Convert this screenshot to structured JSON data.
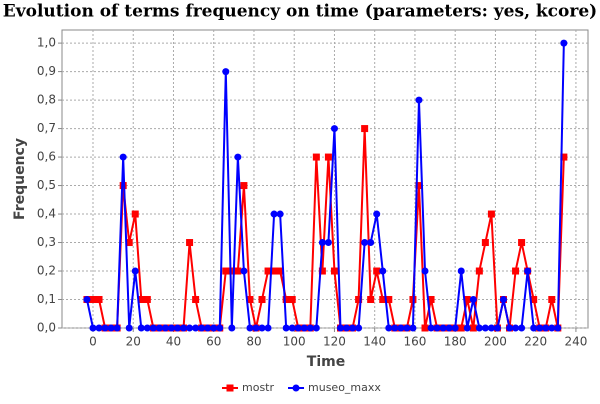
{
  "chart_data": {
    "type": "line",
    "title": "Evolution of terms frequency on time (parameters: yes, kcore)",
    "x_label": "Time",
    "y_label": "Frequency",
    "x": [
      -3,
      0,
      3,
      6,
      9,
      12,
      15,
      18,
      21,
      24,
      27,
      30,
      33,
      36,
      39,
      42,
      45,
      48,
      51,
      54,
      57,
      60,
      63,
      66,
      69,
      72,
      75,
      78,
      81,
      84,
      87,
      90,
      93,
      96,
      99,
      102,
      105,
      108,
      111,
      114,
      117,
      120,
      123,
      126,
      129,
      132,
      135,
      138,
      141,
      144,
      147,
      150,
      153,
      156,
      159,
      162,
      165,
      168,
      171,
      174,
      177,
      180,
      183,
      186,
      189,
      192,
      195,
      198,
      201,
      204,
      207,
      210,
      213,
      216,
      219,
      222,
      225,
      228,
      231,
      234
    ],
    "series": [
      {
        "name": "mostr",
        "color": "#ff0000",
        "marker": "square",
        "values": [
          0.1,
          0.1,
          0.1,
          0,
          0,
          0,
          0.5,
          0.3,
          0.4,
          0.1,
          0.1,
          0,
          0,
          0,
          0,
          0,
          0,
          0.3,
          0.1,
          0,
          0,
          0,
          0,
          0.2,
          0.2,
          0.2,
          0.5,
          0.1,
          0,
          0.1,
          0.2,
          0.2,
          0.2,
          0.1,
          0.1,
          0,
          0,
          0,
          0.6,
          0.2,
          0.6,
          0.2,
          0,
          0,
          0,
          0.1,
          0.7,
          0.1,
          0.2,
          0.1,
          0.1,
          0,
          0,
          0,
          0.1,
          0.5,
          0,
          0.1,
          0,
          0,
          0,
          0,
          0,
          0.1,
          0,
          0.2,
          0.3,
          0.4,
          0,
          0.1,
          0,
          0.2,
          0.3,
          0.2,
          0.1,
          0,
          0,
          0.1,
          0,
          0.6
        ]
      },
      {
        "name": "museo_maxx",
        "color": "#0000ff",
        "marker": "circle",
        "values": [
          0.1,
          0,
          0,
          0,
          0,
          0,
          0.6,
          0,
          0.2,
          0,
          0,
          0,
          0,
          0,
          0,
          0,
          0,
          0,
          0,
          0,
          0,
          0,
          0,
          0.9,
          0,
          0.6,
          0.2,
          0,
          0,
          0,
          0,
          0.4,
          0.4,
          0,
          0,
          0,
          0,
          0,
          0,
          0.3,
          0.3,
          0.7,
          0,
          0,
          0,
          0,
          0.3,
          0.3,
          0.4,
          0.2,
          0,
          0,
          0,
          0,
          0,
          0.8,
          0.2,
          0,
          0,
          0,
          0,
          0,
          0.2,
          0,
          0.1,
          0,
          0,
          0,
          0,
          0.1,
          0,
          0,
          0,
          0.2,
          0,
          0,
          0,
          0,
          0,
          1.0
        ]
      }
    ],
    "xlim": [
      -15.4,
      246
    ],
    "ylim": [
      0,
      1.046
    ],
    "xticks": [
      0,
      20,
      40,
      60,
      80,
      100,
      120,
      140,
      160,
      180,
      200,
      220,
      240
    ],
    "yticks": [
      {
        "value": 0,
        "label": "0,0"
      },
      {
        "value": 0.1,
        "label": "0,1"
      },
      {
        "value": 0.2,
        "label": "0,2"
      },
      {
        "value": 0.3,
        "label": "0,3"
      },
      {
        "value": 0.4,
        "label": "0,4"
      },
      {
        "value": 0.5,
        "label": "0,5"
      },
      {
        "value": 0.6,
        "label": "0,6"
      },
      {
        "value": 0.7,
        "label": "0,7"
      },
      {
        "value": 0.8,
        "label": "0,8"
      },
      {
        "value": 0.9,
        "label": "0,9"
      },
      {
        "value": 1.0,
        "label": "1,0"
      }
    ],
    "grid": true,
    "legend": "bottom"
  }
}
